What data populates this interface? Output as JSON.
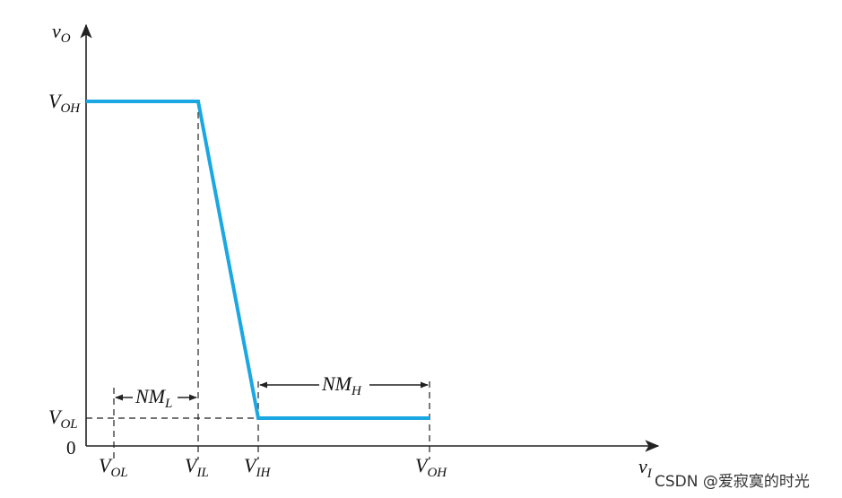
{
  "diagram": {
    "axes": {
      "y_label": {
        "main": "v",
        "sub": "O"
      },
      "x_label": {
        "main": "v",
        "sub": "I"
      },
      "origin_label": "0"
    },
    "y_ticks": [
      {
        "main": "V",
        "sub": "OH"
      },
      {
        "main": "V",
        "sub": "OL"
      }
    ],
    "x_ticks": [
      {
        "main": "V",
        "sub": "OL"
      },
      {
        "main": "V",
        "sub": "IL"
      },
      {
        "main": "V",
        "sub": "IH"
      },
      {
        "main": "V",
        "sub": "OH"
      }
    ],
    "margins": {
      "low": {
        "main": "NM",
        "sub": "L"
      },
      "high": {
        "main": "NM",
        "sub": "H"
      }
    },
    "curve_color": "#1aa7e2",
    "line_color": "#222222"
  },
  "watermark": "CSDN @爱寂寞的时光"
}
